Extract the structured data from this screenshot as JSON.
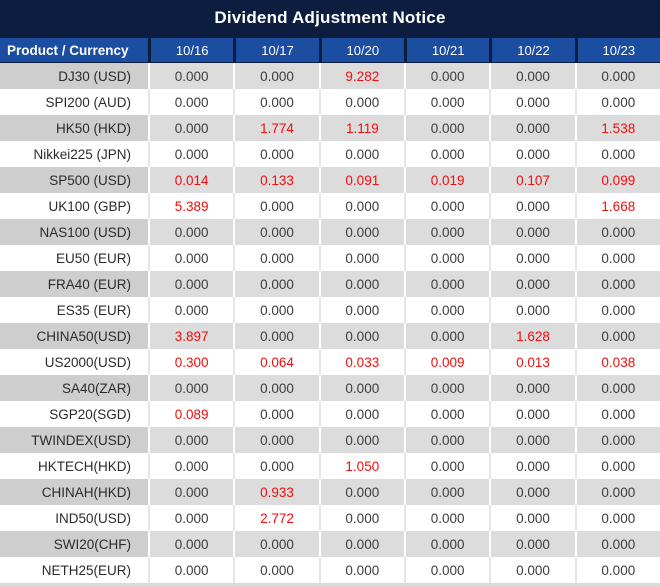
{
  "title": "Dividend Adjustment Notice",
  "colors": {
    "title_bg": "#0d1d3f",
    "header_bg": "#1b4da0",
    "header_border": "#0d1d3f",
    "row_gray_product": "#cecece",
    "row_gray_cell": "#dcdcdc",
    "row_white": "#ffffff",
    "value_dark": "#3c3c3c",
    "value_red": "#f20d0d"
  },
  "header": {
    "product_label": "Product / Currency",
    "dates": [
      "10/16",
      "10/17",
      "10/20",
      "10/21",
      "10/22",
      "10/23"
    ]
  },
  "rows": [
    {
      "product": "DJ30 (USD)",
      "cells": [
        {
          "v": "0.000",
          "red": false
        },
        {
          "v": "0.000",
          "red": false
        },
        {
          "v": "9.282",
          "red": true
        },
        {
          "v": "0.000",
          "red": false
        },
        {
          "v": "0.000",
          "red": false
        },
        {
          "v": "0.000",
          "red": false
        }
      ]
    },
    {
      "product": "SPI200 (AUD)",
      "cells": [
        {
          "v": "0.000",
          "red": false
        },
        {
          "v": "0.000",
          "red": false
        },
        {
          "v": "0.000",
          "red": false
        },
        {
          "v": "0.000",
          "red": false
        },
        {
          "v": "0.000",
          "red": false
        },
        {
          "v": "0.000",
          "red": false
        }
      ]
    },
    {
      "product": "HK50 (HKD)",
      "cells": [
        {
          "v": "0.000",
          "red": false
        },
        {
          "v": "1.774",
          "red": true
        },
        {
          "v": "1.119",
          "red": true
        },
        {
          "v": "0.000",
          "red": false
        },
        {
          "v": "0.000",
          "red": false
        },
        {
          "v": "1.538",
          "red": true
        }
      ]
    },
    {
      "product": "Nikkei225 (JPN)",
      "cells": [
        {
          "v": "0.000",
          "red": false
        },
        {
          "v": "0.000",
          "red": false
        },
        {
          "v": "0.000",
          "red": false
        },
        {
          "v": "0.000",
          "red": false
        },
        {
          "v": "0.000",
          "red": false
        },
        {
          "v": "0.000",
          "red": false
        }
      ]
    },
    {
      "product": "SP500 (USD)",
      "cells": [
        {
          "v": "0.014",
          "red": true
        },
        {
          "v": "0.133",
          "red": true
        },
        {
          "v": "0.091",
          "red": true
        },
        {
          "v": "0.019",
          "red": true
        },
        {
          "v": "0.107",
          "red": true
        },
        {
          "v": "0.099",
          "red": true
        }
      ]
    },
    {
      "product": "UK100 (GBP)",
      "cells": [
        {
          "v": "5.389",
          "red": true
        },
        {
          "v": "0.000",
          "red": false
        },
        {
          "v": "0.000",
          "red": false
        },
        {
          "v": "0.000",
          "red": false
        },
        {
          "v": "0.000",
          "red": false
        },
        {
          "v": "1.668",
          "red": true
        }
      ]
    },
    {
      "product": "NAS100 (USD)",
      "cells": [
        {
          "v": "0.000",
          "red": false
        },
        {
          "v": "0.000",
          "red": false
        },
        {
          "v": "0.000",
          "red": false
        },
        {
          "v": "0.000",
          "red": false
        },
        {
          "v": "0.000",
          "red": false
        },
        {
          "v": "0.000",
          "red": false
        }
      ]
    },
    {
      "product": "EU50 (EUR)",
      "cells": [
        {
          "v": "0.000",
          "red": false
        },
        {
          "v": "0.000",
          "red": false
        },
        {
          "v": "0.000",
          "red": false
        },
        {
          "v": "0.000",
          "red": false
        },
        {
          "v": "0.000",
          "red": false
        },
        {
          "v": "0.000",
          "red": false
        }
      ]
    },
    {
      "product": "FRA40 (EUR)",
      "cells": [
        {
          "v": "0.000",
          "red": false
        },
        {
          "v": "0.000",
          "red": false
        },
        {
          "v": "0.000",
          "red": false
        },
        {
          "v": "0.000",
          "red": false
        },
        {
          "v": "0.000",
          "red": false
        },
        {
          "v": "0.000",
          "red": false
        }
      ]
    },
    {
      "product": "ES35 (EUR)",
      "cells": [
        {
          "v": "0.000",
          "red": false
        },
        {
          "v": "0.000",
          "red": false
        },
        {
          "v": "0.000",
          "red": false
        },
        {
          "v": "0.000",
          "red": false
        },
        {
          "v": "0.000",
          "red": false
        },
        {
          "v": "0.000",
          "red": false
        }
      ]
    },
    {
      "product": "CHINA50(USD)",
      "cells": [
        {
          "v": "3.897",
          "red": true
        },
        {
          "v": "0.000",
          "red": false
        },
        {
          "v": "0.000",
          "red": false
        },
        {
          "v": "0.000",
          "red": false
        },
        {
          "v": "1.628",
          "red": true
        },
        {
          "v": "0.000",
          "red": false
        }
      ]
    },
    {
      "product": "US2000(USD)",
      "cells": [
        {
          "v": "0.300",
          "red": true
        },
        {
          "v": "0.064",
          "red": true
        },
        {
          "v": "0.033",
          "red": true
        },
        {
          "v": "0.009",
          "red": true
        },
        {
          "v": "0.013",
          "red": true
        },
        {
          "v": "0.038",
          "red": true
        }
      ]
    },
    {
      "product": "SA40(ZAR)",
      "cells": [
        {
          "v": "0.000",
          "red": false
        },
        {
          "v": "0.000",
          "red": false
        },
        {
          "v": "0.000",
          "red": false
        },
        {
          "v": "0.000",
          "red": false
        },
        {
          "v": "0.000",
          "red": false
        },
        {
          "v": "0.000",
          "red": false
        }
      ]
    },
    {
      "product": "SGP20(SGD)",
      "cells": [
        {
          "v": "0.089",
          "red": true
        },
        {
          "v": "0.000",
          "red": false
        },
        {
          "v": "0.000",
          "red": false
        },
        {
          "v": "0.000",
          "red": false
        },
        {
          "v": "0.000",
          "red": false
        },
        {
          "v": "0.000",
          "red": false
        }
      ]
    },
    {
      "product": "TWINDEX(USD)",
      "cells": [
        {
          "v": "0.000",
          "red": false
        },
        {
          "v": "0.000",
          "red": false
        },
        {
          "v": "0.000",
          "red": false
        },
        {
          "v": "0.000",
          "red": false
        },
        {
          "v": "0.000",
          "red": false
        },
        {
          "v": "0.000",
          "red": false
        }
      ]
    },
    {
      "product": "HKTECH(HKD)",
      "cells": [
        {
          "v": "0.000",
          "red": false
        },
        {
          "v": "0.000",
          "red": false
        },
        {
          "v": "1.050",
          "red": true
        },
        {
          "v": "0.000",
          "red": false
        },
        {
          "v": "0.000",
          "red": false
        },
        {
          "v": "0.000",
          "red": false
        }
      ]
    },
    {
      "product": "CHINAH(HKD)",
      "cells": [
        {
          "v": "0.000",
          "red": false
        },
        {
          "v": "0.933",
          "red": true
        },
        {
          "v": "0.000",
          "red": false
        },
        {
          "v": "0.000",
          "red": false
        },
        {
          "v": "0.000",
          "red": false
        },
        {
          "v": "0.000",
          "red": false
        }
      ]
    },
    {
      "product": "IND50(USD)",
      "cells": [
        {
          "v": "0.000",
          "red": false
        },
        {
          "v": "2.772",
          "red": true
        },
        {
          "v": "0.000",
          "red": false
        },
        {
          "v": "0.000",
          "red": false
        },
        {
          "v": "0.000",
          "red": false
        },
        {
          "v": "0.000",
          "red": false
        }
      ]
    },
    {
      "product": "SWI20(CHF)",
      "cells": [
        {
          "v": "0.000",
          "red": false
        },
        {
          "v": "0.000",
          "red": false
        },
        {
          "v": "0.000",
          "red": false
        },
        {
          "v": "0.000",
          "red": false
        },
        {
          "v": "0.000",
          "red": false
        },
        {
          "v": "0.000",
          "red": false
        }
      ]
    },
    {
      "product": "NETH25(EUR)",
      "cells": [
        {
          "v": "0.000",
          "red": false
        },
        {
          "v": "0.000",
          "red": false
        },
        {
          "v": "0.000",
          "red": false
        },
        {
          "v": "0.000",
          "red": false
        },
        {
          "v": "0.000",
          "red": false
        },
        {
          "v": "0.000",
          "red": false
        }
      ]
    }
  ]
}
